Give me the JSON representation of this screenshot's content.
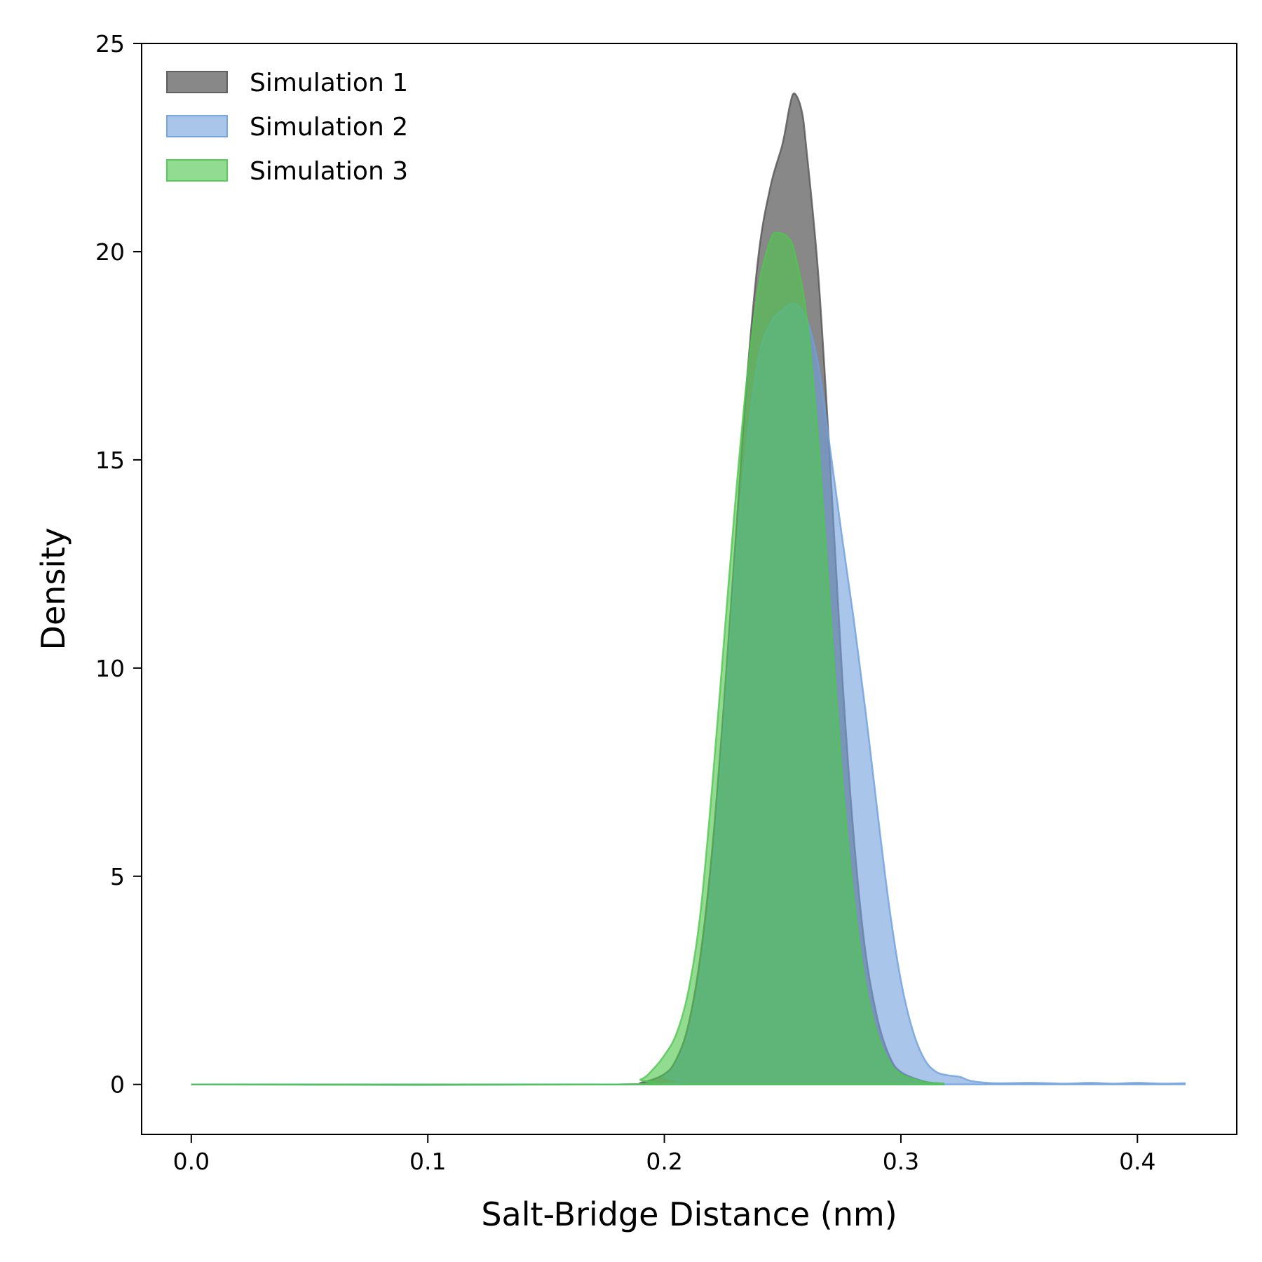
{
  "chart_data": {
    "type": "area",
    "title": "",
    "xlabel": "Salt-Bridge Distance (nm)",
    "ylabel": "Density",
    "xlim": [
      -0.021,
      0.442
    ],
    "ylim": [
      -1.2,
      25
    ],
    "x_ticks": [
      {
        "value": 0.0,
        "label": "0.0"
      },
      {
        "value": 0.1,
        "label": "0.1"
      },
      {
        "value": 0.2,
        "label": "0.2"
      },
      {
        "value": 0.3,
        "label": "0.3"
      },
      {
        "value": 0.4,
        "label": "0.4"
      }
    ],
    "y_ticks": [
      {
        "value": 0,
        "label": "0"
      },
      {
        "value": 5,
        "label": "5"
      },
      {
        "value": 10,
        "label": "10"
      },
      {
        "value": 15,
        "label": "15"
      },
      {
        "value": 20,
        "label": "20"
      },
      {
        "value": 25,
        "label": "25"
      }
    ],
    "grid": false,
    "legend_position": "top-left",
    "series": [
      {
        "name": "Simulation 1",
        "color": "#555555",
        "fill_opacity": 0.7,
        "points": [
          [
            0.0,
            0
          ],
          [
            0.18,
            0
          ],
          [
            0.19,
            0.04
          ],
          [
            0.2,
            0.25
          ],
          [
            0.205,
            0.6
          ],
          [
            0.21,
            1.4
          ],
          [
            0.215,
            3.0
          ],
          [
            0.22,
            5.5
          ],
          [
            0.225,
            9.0
          ],
          [
            0.23,
            13.0
          ],
          [
            0.235,
            17.0
          ],
          [
            0.24,
            20.0
          ],
          [
            0.245,
            21.6
          ],
          [
            0.25,
            22.6
          ],
          [
            0.253,
            23.5
          ],
          [
            0.255,
            23.8
          ],
          [
            0.258,
            23.4
          ],
          [
            0.26,
            22.5
          ],
          [
            0.265,
            19.5
          ],
          [
            0.27,
            15.0
          ],
          [
            0.275,
            10.0
          ],
          [
            0.28,
            6.0
          ],
          [
            0.285,
            3.2
          ],
          [
            0.29,
            1.6
          ],
          [
            0.295,
            0.7
          ],
          [
            0.3,
            0.3
          ],
          [
            0.31,
            0.07
          ],
          [
            0.318,
            0.02
          ]
        ]
      },
      {
        "name": "Simulation 2",
        "color": "#6f9fdc",
        "fill_opacity": 0.6,
        "points": [
          [
            0.0,
            0
          ],
          [
            0.19,
            0
          ],
          [
            0.2,
            0.2
          ],
          [
            0.205,
            0.5
          ],
          [
            0.21,
            1.2
          ],
          [
            0.215,
            2.6
          ],
          [
            0.22,
            5.0
          ],
          [
            0.225,
            8.5
          ],
          [
            0.23,
            12.5
          ],
          [
            0.235,
            15.5
          ],
          [
            0.24,
            17.5
          ],
          [
            0.245,
            18.3
          ],
          [
            0.25,
            18.6
          ],
          [
            0.255,
            18.75
          ],
          [
            0.26,
            18.4
          ],
          [
            0.265,
            17.3
          ],
          [
            0.27,
            15.3
          ],
          [
            0.275,
            13.2
          ],
          [
            0.28,
            11.2
          ],
          [
            0.285,
            9.0
          ],
          [
            0.29,
            6.6
          ],
          [
            0.295,
            4.3
          ],
          [
            0.3,
            2.5
          ],
          [
            0.305,
            1.3
          ],
          [
            0.31,
            0.6
          ],
          [
            0.315,
            0.3
          ],
          [
            0.32,
            0.22
          ],
          [
            0.325,
            0.18
          ],
          [
            0.33,
            0.08
          ],
          [
            0.34,
            0.03
          ],
          [
            0.355,
            0.04
          ],
          [
            0.37,
            0.02
          ],
          [
            0.38,
            0.04
          ],
          [
            0.39,
            0.02
          ],
          [
            0.4,
            0.04
          ],
          [
            0.41,
            0.02
          ],
          [
            0.42,
            0.03
          ]
        ]
      },
      {
        "name": "Simulation 3",
        "color": "#4fc74f",
        "fill_opacity": 0.62,
        "points": [
          [
            0.0,
            0
          ],
          [
            0.18,
            0
          ],
          [
            0.19,
            0.12
          ],
          [
            0.195,
            0.35
          ],
          [
            0.2,
            0.7
          ],
          [
            0.205,
            1.2
          ],
          [
            0.21,
            2.2
          ],
          [
            0.215,
            4.0
          ],
          [
            0.22,
            7.0
          ],
          [
            0.225,
            10.5
          ],
          [
            0.23,
            14.0
          ],
          [
            0.235,
            17.0
          ],
          [
            0.24,
            19.2
          ],
          [
            0.245,
            20.3
          ],
          [
            0.248,
            20.45
          ],
          [
            0.252,
            20.35
          ],
          [
            0.255,
            20.0
          ],
          [
            0.26,
            18.5
          ],
          [
            0.265,
            15.5
          ],
          [
            0.27,
            11.5
          ],
          [
            0.275,
            7.5
          ],
          [
            0.28,
            4.5
          ],
          [
            0.285,
            2.4
          ],
          [
            0.29,
            1.2
          ],
          [
            0.295,
            0.55
          ],
          [
            0.3,
            0.25
          ],
          [
            0.31,
            0.06
          ],
          [
            0.318,
            0.02
          ]
        ]
      }
    ]
  }
}
